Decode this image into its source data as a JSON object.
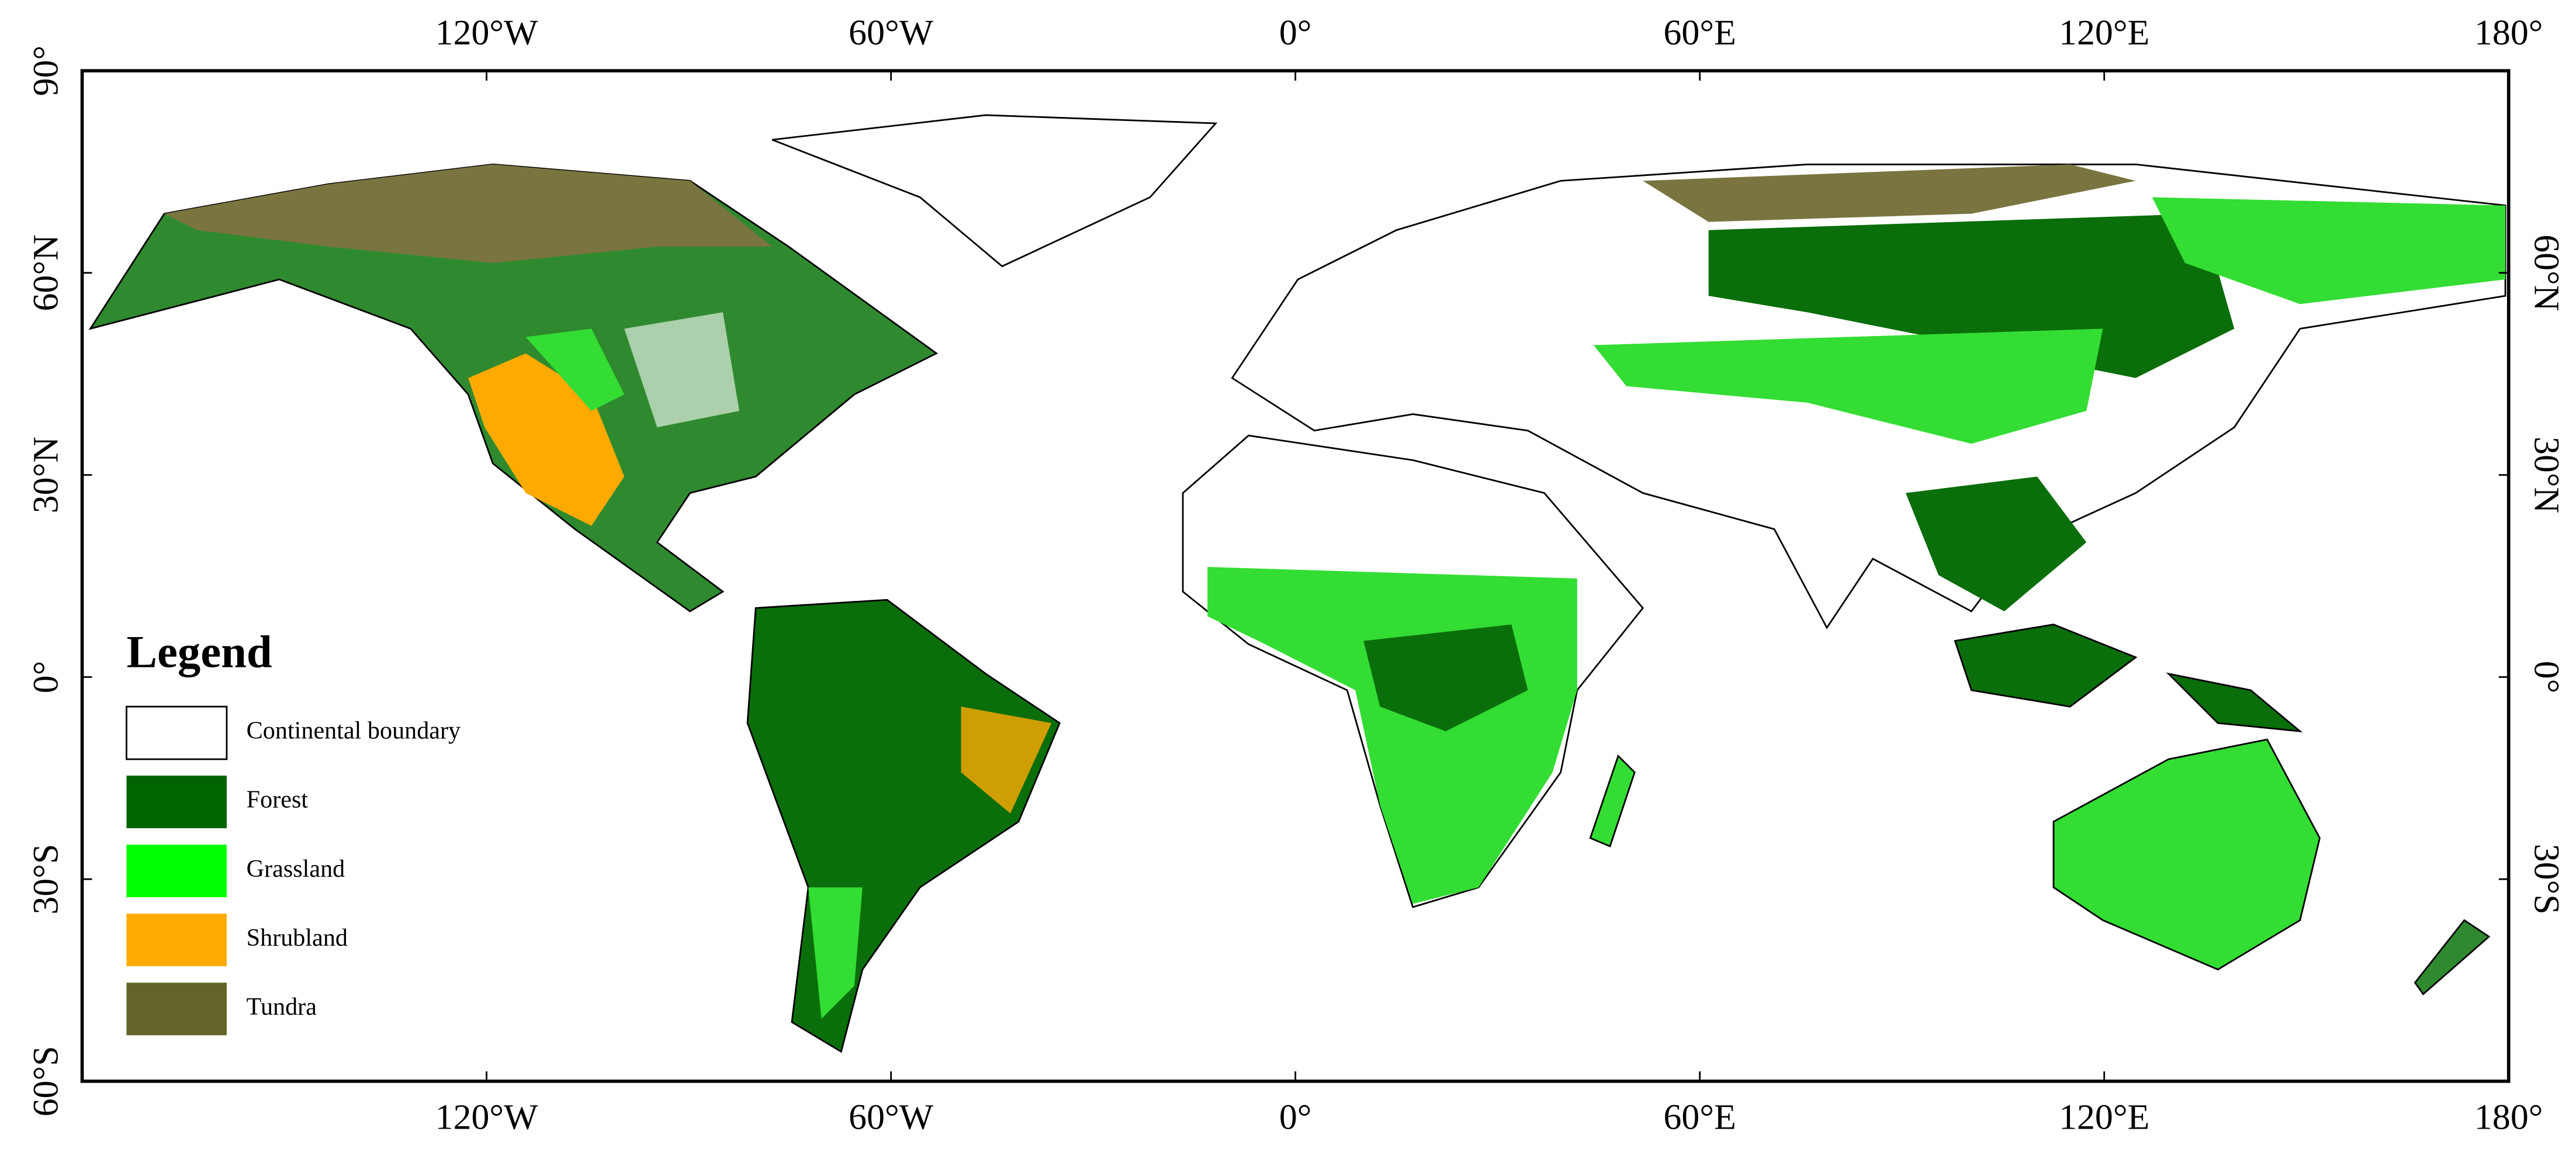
{
  "map": {
    "lon_ticks": [
      {
        "value": -120,
        "label": "120°W"
      },
      {
        "value": -60,
        "label": "60°W"
      },
      {
        "value": 0,
        "label": "0°"
      },
      {
        "value": 60,
        "label": "60°E"
      },
      {
        "value": 120,
        "label": "120°E"
      },
      {
        "value": 180,
        "label": "180°"
      }
    ],
    "lat_ticks_left": [
      {
        "value": 90,
        "label": "90°"
      },
      {
        "value": 60,
        "label": "60°N"
      },
      {
        "value": 30,
        "label": "30°N"
      },
      {
        "value": 0,
        "label": "0°"
      },
      {
        "value": -30,
        "label": "30°S"
      },
      {
        "value": -60,
        "label": "60°S"
      }
    ],
    "lat_ticks_right": [
      {
        "value": 60,
        "label": "60°N"
      },
      {
        "value": 30,
        "label": "30°N"
      },
      {
        "value": 0,
        "label": "0°"
      },
      {
        "value": -30,
        "label": "30°S"
      }
    ],
    "xlim": [
      -180,
      180
    ],
    "ylim": [
      -60,
      90
    ],
    "legend": {
      "title": "Legend",
      "items": [
        {
          "label": "Continental boundary",
          "color": "#ffffff"
        },
        {
          "label": "Forest",
          "color": "#006400"
        },
        {
          "label": "Grassland",
          "color": "#00ff00"
        },
        {
          "label": "Shrubland",
          "color": "#ffaa00"
        },
        {
          "label": "Tundra",
          "color": "#646428"
        }
      ]
    }
  }
}
